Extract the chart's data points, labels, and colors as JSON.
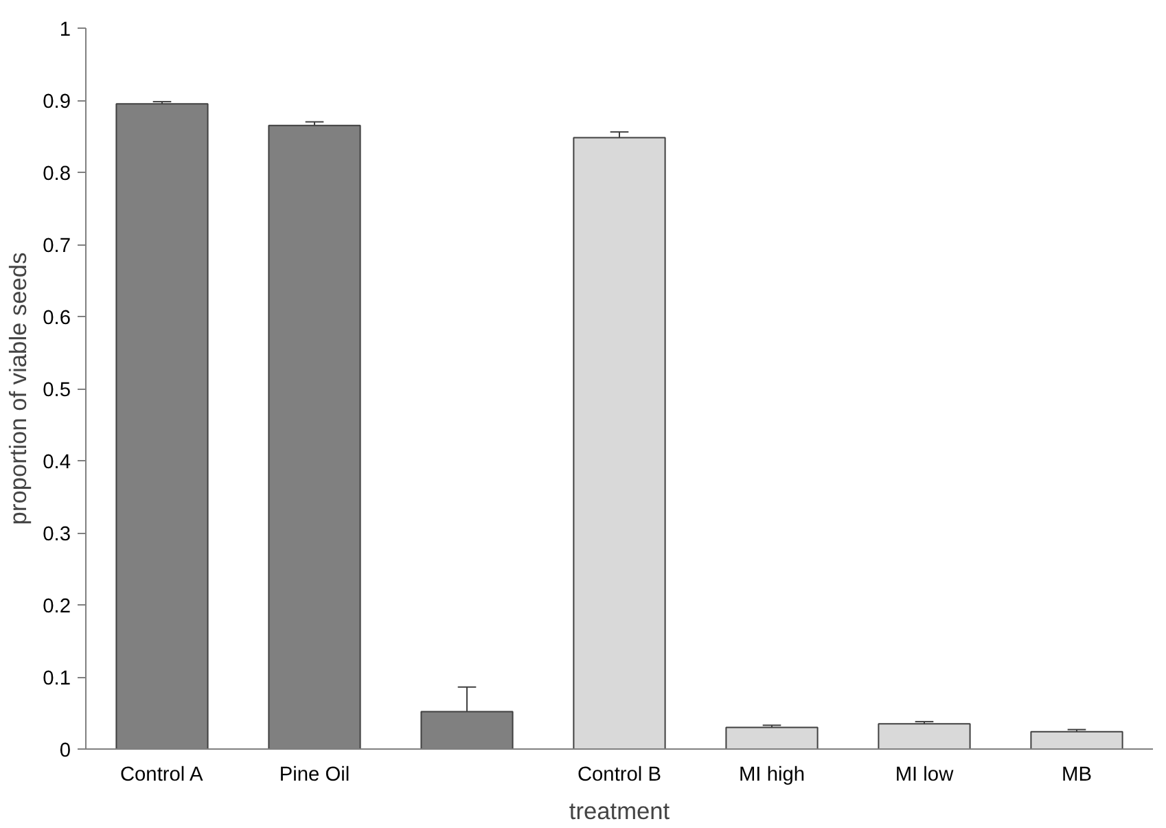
{
  "chart_data": {
    "type": "bar",
    "xlabel": "treatment",
    "ylabel": "proportion of viable seeds",
    "categories": [
      "Control A",
      "Pine Oil",
      null,
      "Control B",
      "MI high",
      "MI low",
      "MB"
    ],
    "values": [
      0.895,
      0.865,
      0.052,
      0.848,
      0.03,
      0.035,
      0.024
    ],
    "colors": [
      "#808080",
      "#808080",
      "#808080",
      "#d9d9d9",
      "#d9d9d9",
      "#d9d9d9",
      "#d9d9d9"
    ],
    "errors": [
      [
        0.895,
        0.898
      ],
      [
        0.865,
        0.87
      ],
      [
        0.052,
        0.086
      ],
      [
        0.848,
        0.856
      ],
      [
        0.03,
        0.033
      ],
      [
        0.035,
        0.038
      ],
      [
        0.024,
        0.027
      ]
    ],
    "ylim": [
      0,
      1
    ],
    "yticks": [
      0,
      0.1,
      0.2,
      0.3,
      0.4,
      0.5,
      0.6,
      0.7,
      0.8,
      0.9,
      1
    ],
    "grid": false
  }
}
